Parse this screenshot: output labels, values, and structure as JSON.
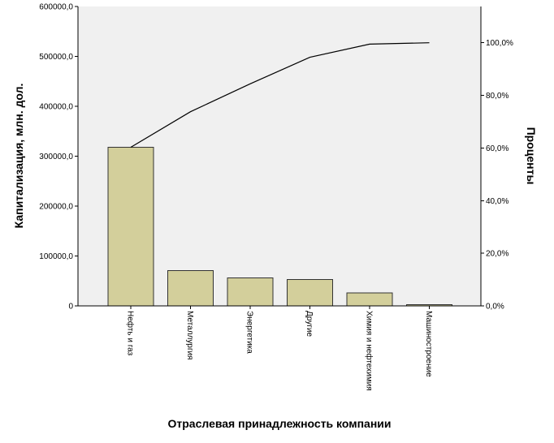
{
  "chart_data": {
    "type": "bar",
    "subtype": "pareto",
    "categories": [
      "Нефть и газ",
      "Металлургия",
      "Энергетика",
      "Другие",
      "Химия и нефтехимия",
      "Машиностроение"
    ],
    "series": [
      {
        "type": "bar",
        "axis": "left",
        "values": [
          318000,
          71000,
          56000,
          53000,
          26000,
          2500
        ]
      },
      {
        "type": "line",
        "axis": "right",
        "values": [
          60.3,
          73.8,
          84.4,
          94.5,
          99.5,
          100.0
        ]
      }
    ],
    "xlabel": "Отраслевая принадлежность компании",
    "ylabel": "Капитализация, млн. дол.",
    "ylabel_right": "Проценты",
    "ylim": [
      0,
      600000
    ],
    "ylim_right": [
      0,
      113.8
    ],
    "yticks": [
      "0",
      "100000,0",
      "200000,0",
      "300000,0",
      "400000,0",
      "500000,0",
      "600000,0"
    ],
    "yticks_right": [
      "0,0%",
      "20,0%",
      "40,0%",
      "60,0%",
      "80,0%",
      "100,0%"
    ],
    "colors": {
      "bar_fill": "#d3cf9b",
      "plot_background": "#f0f0f0",
      "line": "#000000"
    },
    "grid": false,
    "legend": "none"
  }
}
